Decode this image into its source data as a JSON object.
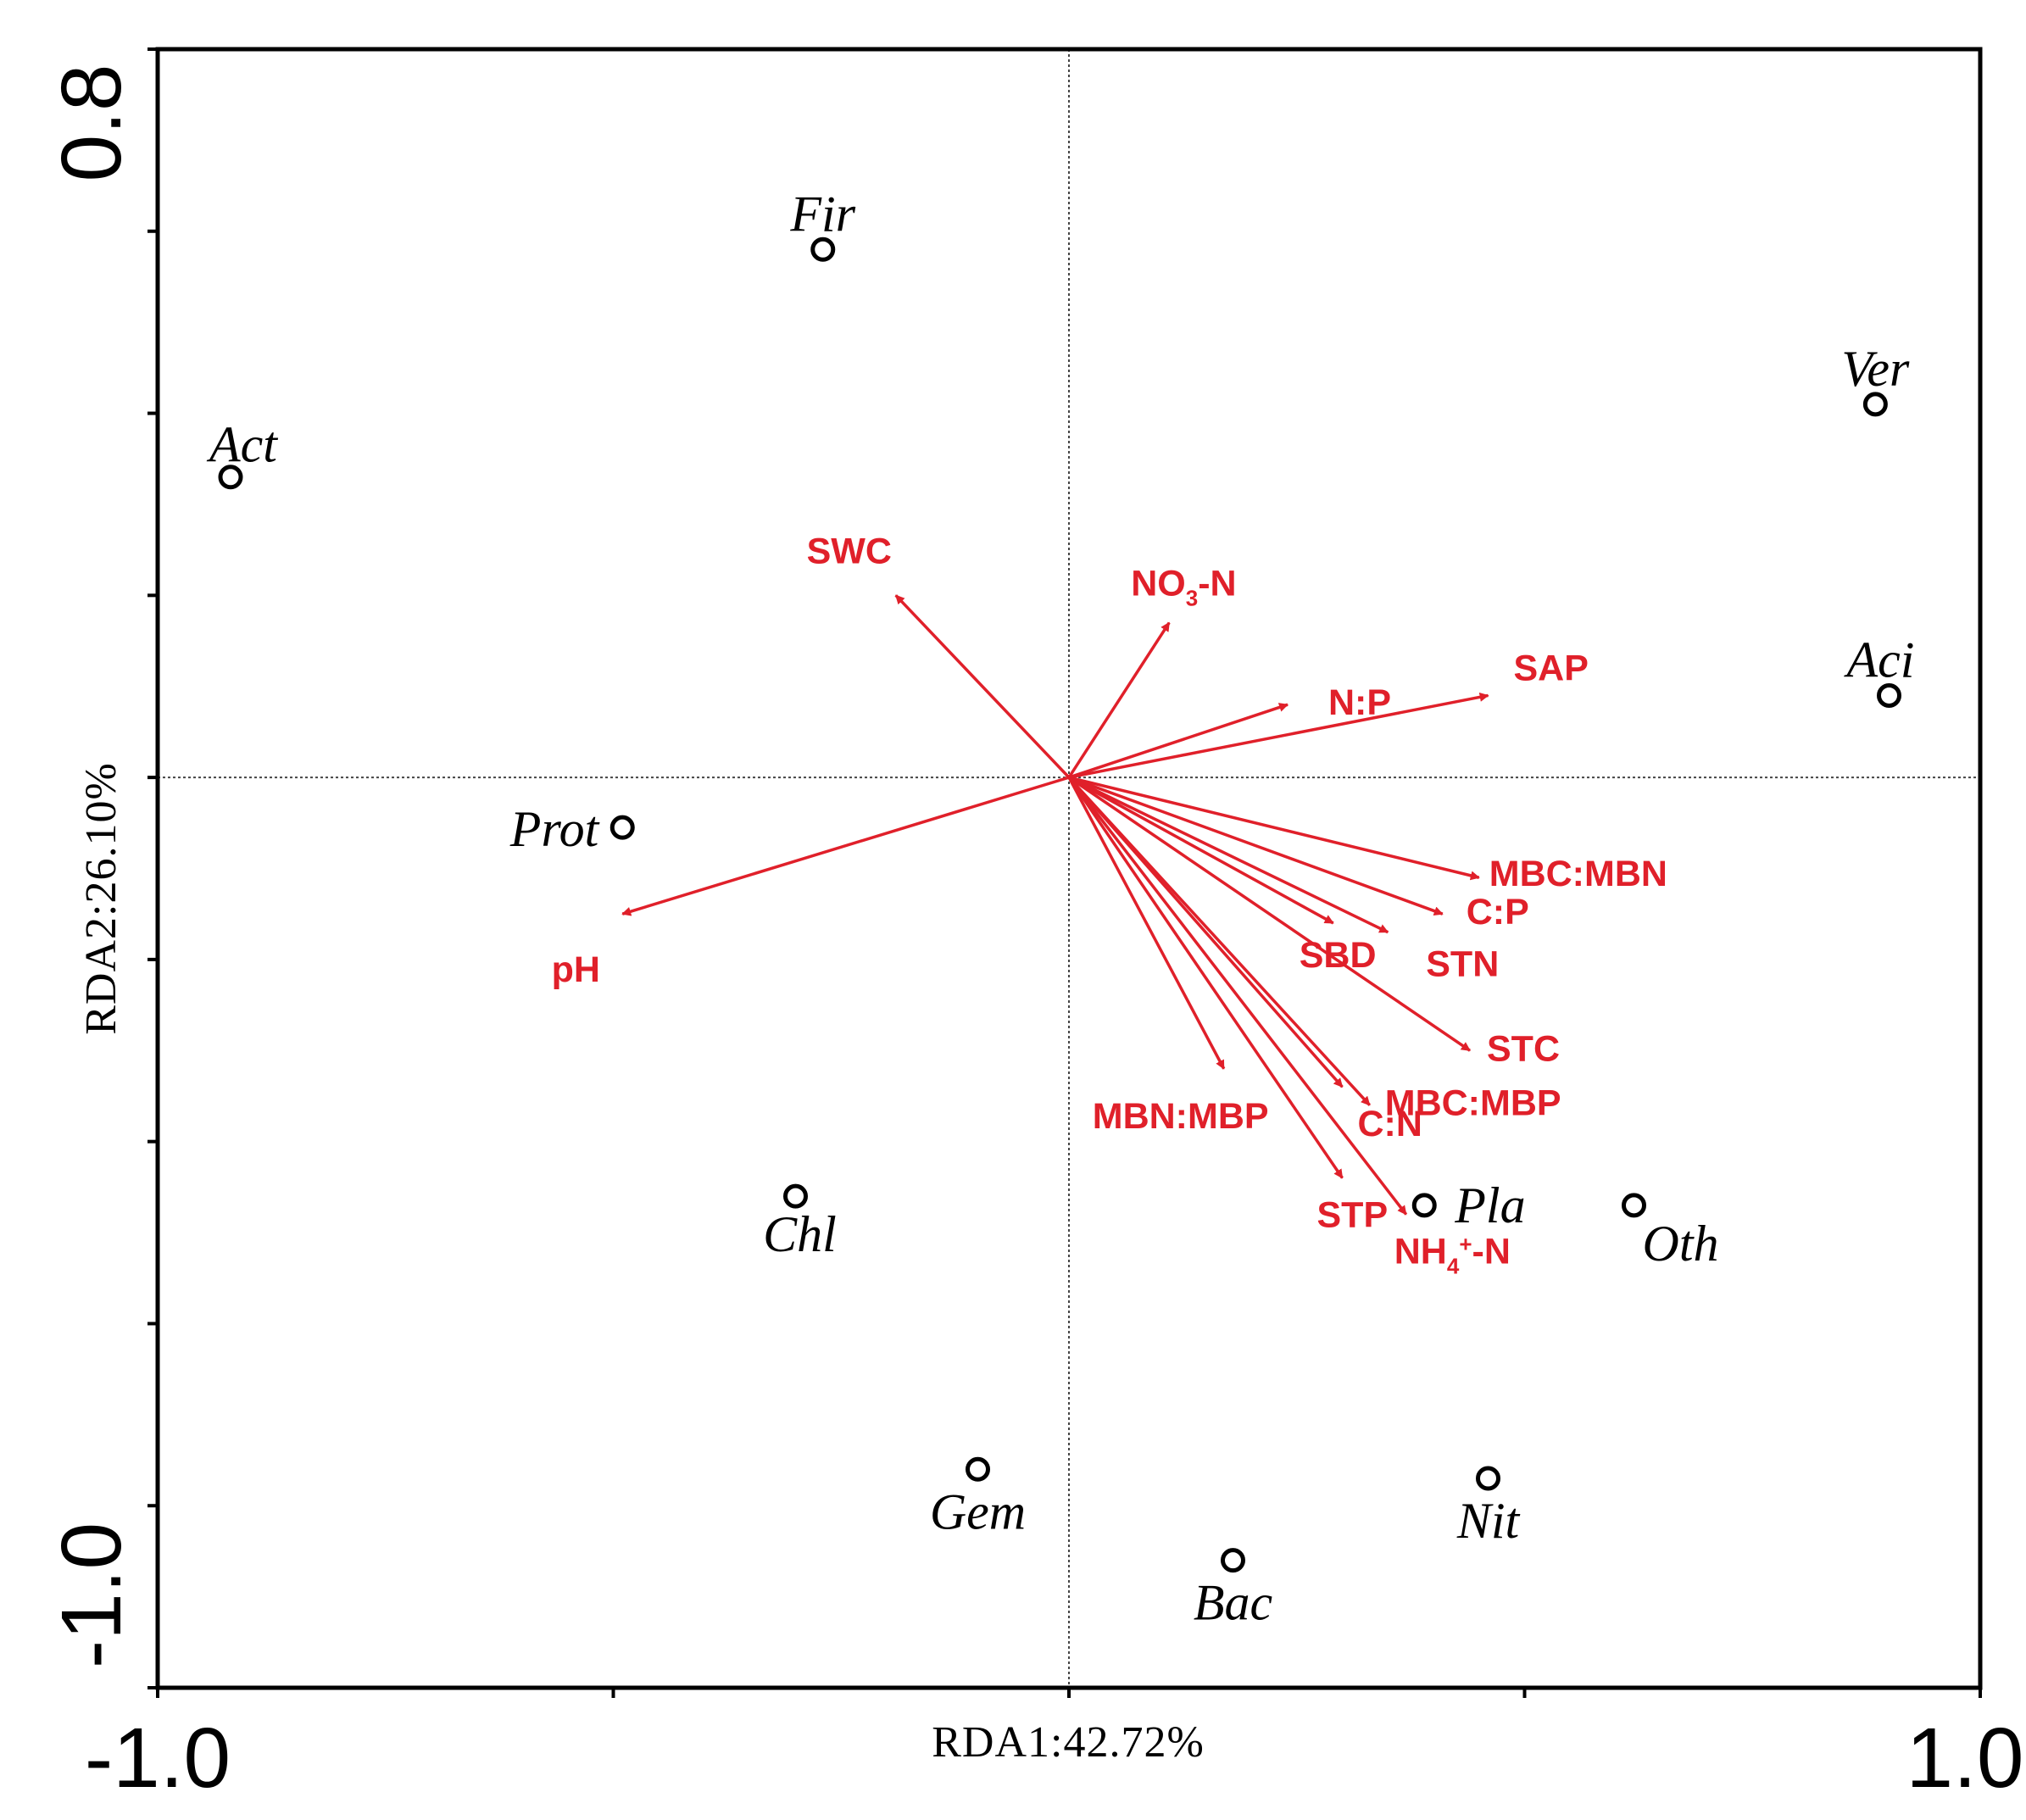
{
  "chart_data": {
    "type": "scatter",
    "subtype": "RDA biplot",
    "xlabel": "RDA1:42.72%",
    "ylabel": "RDA2:26.10%",
    "xlim": [
      -1.0,
      1.0
    ],
    "ylim": [
      -1.0,
      0.8
    ],
    "x_tick_labels": [
      "-1.0",
      "1.0"
    ],
    "y_tick_labels": [
      "-1.0",
      "0.8"
    ],
    "x_ticks": [
      -1.0,
      -0.5,
      0.0,
      0.5,
      1.0
    ],
    "y_ticks": [
      -1.0,
      -0.8,
      -0.6,
      -0.4,
      -0.2,
      0.0,
      0.2,
      0.4,
      0.6,
      0.8
    ],
    "colors": {
      "axis": "#000000",
      "arrow": "#e0202a",
      "label": "#e0202a"
    },
    "taxa": [
      {
        "name": "Act",
        "x": -0.92,
        "y": 0.33
      },
      {
        "name": "Fir",
        "x": -0.27,
        "y": 0.58
      },
      {
        "name": "Ver",
        "x": 0.885,
        "y": 0.41
      },
      {
        "name": "Aci",
        "x": 0.9,
        "y": 0.09
      },
      {
        "name": "Prot",
        "x": -0.49,
        "y": -0.055
      },
      {
        "name": "Chl",
        "x": -0.3,
        "y": -0.46
      },
      {
        "name": "Pla",
        "x": 0.39,
        "y": -0.47
      },
      {
        "name": "Oth",
        "x": 0.62,
        "y": -0.47
      },
      {
        "name": "Gem",
        "x": -0.1,
        "y": -0.76
      },
      {
        "name": "Nit",
        "x": 0.46,
        "y": -0.77
      },
      {
        "name": "Bac",
        "x": 0.18,
        "y": -0.86
      }
    ],
    "env_vectors": [
      {
        "name": "SWC",
        "x": -0.19,
        "y": 0.2
      },
      {
        "name": "NO3-N",
        "label": "NO",
        "sub": "3",
        "label_after": "-N",
        "x": 0.11,
        "y": 0.17
      },
      {
        "name": "N:P",
        "x": 0.24,
        "y": 0.08
      },
      {
        "name": "SAP",
        "x": 0.46,
        "y": 0.09
      },
      {
        "name": "pH",
        "x": -0.49,
        "y": -0.15
      },
      {
        "name": "MBC:MBN",
        "x": 0.45,
        "y": -0.11
      },
      {
        "name": "C:P",
        "x": 0.41,
        "y": -0.15
      },
      {
        "name": "SBD",
        "x": 0.29,
        "y": -0.16
      },
      {
        "name": "STN",
        "x": 0.35,
        "y": -0.17
      },
      {
        "name": "STC",
        "x": 0.44,
        "y": -0.3
      },
      {
        "name": "MBN:MBP",
        "x": 0.17,
        "y": -0.32
      },
      {
        "name": "MBC:MBP",
        "x": 0.33,
        "y": -0.36
      },
      {
        "name": "C:N",
        "x": 0.3,
        "y": -0.34
      },
      {
        "name": "STP",
        "x": 0.3,
        "y": -0.44
      },
      {
        "name": "NH4+-N",
        "label": "NH",
        "sub": "4",
        "sup": "+",
        "label_after": "-N",
        "x": 0.37,
        "y": -0.48
      }
    ]
  }
}
